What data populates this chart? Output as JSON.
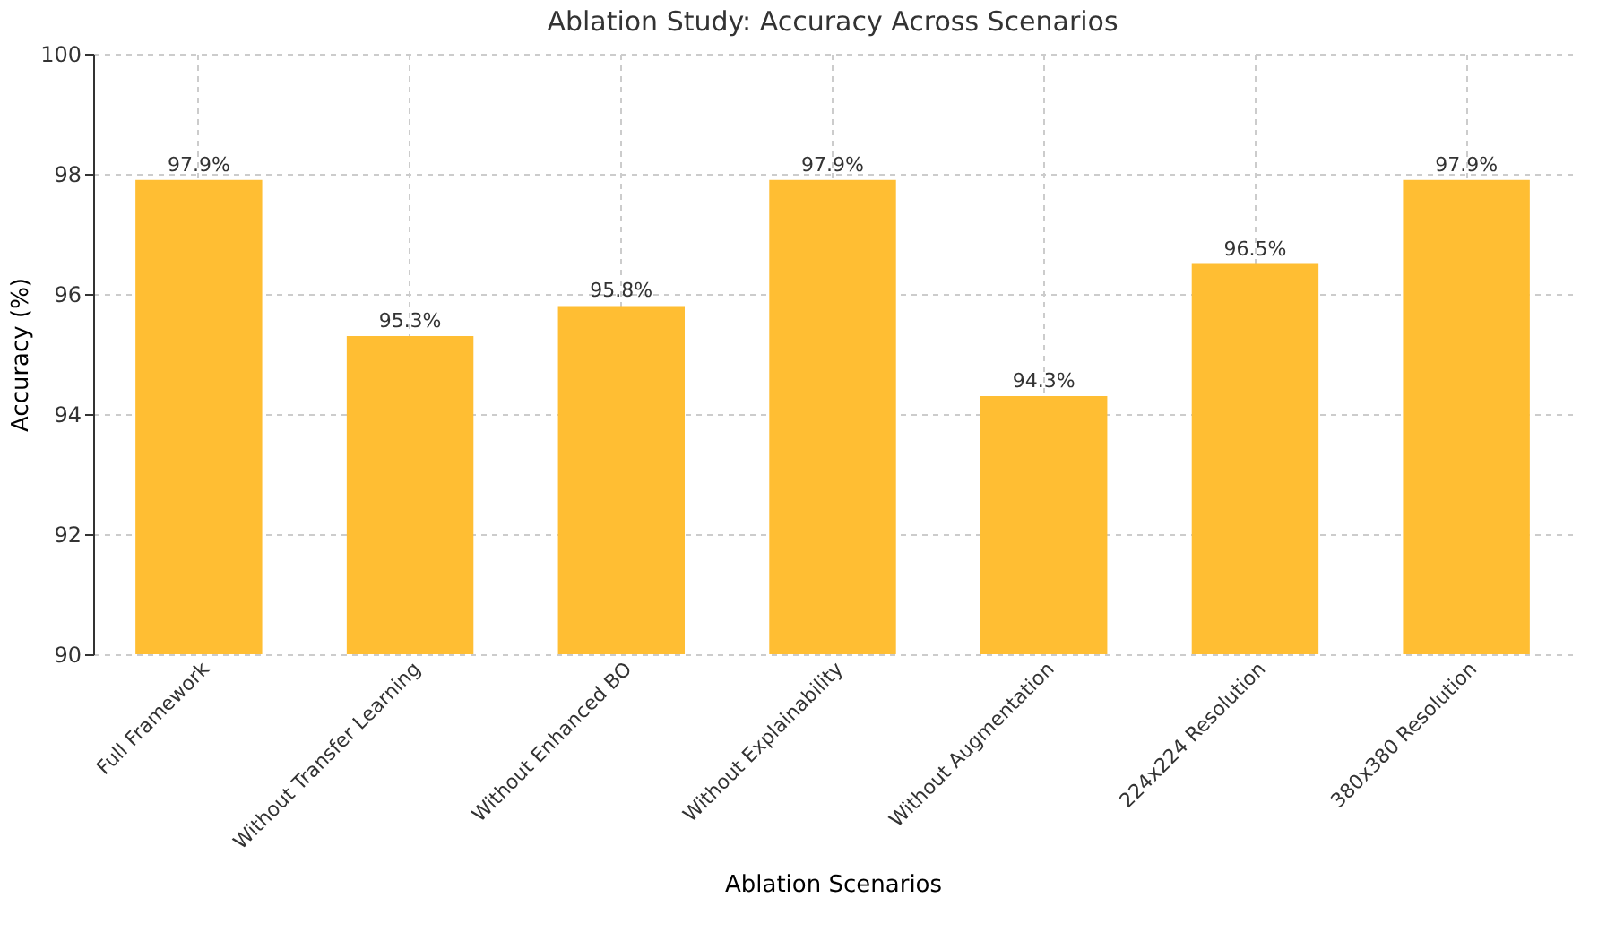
{
  "chart_data": {
    "type": "bar",
    "title": "Ablation Study: Accuracy Across Scenarios",
    "xlabel": "Ablation Scenarios",
    "ylabel": "Accuracy (%)",
    "categories": [
      "Full Framework",
      "Without Transfer Learning",
      "Without Enhanced BO",
      "Without Explainability",
      "Without Augmentation",
      "224x224 Resolution",
      "380x380 Resolution"
    ],
    "values": [
      97.9,
      95.3,
      95.8,
      97.9,
      94.3,
      96.5,
      97.9
    ],
    "value_labels": [
      "97.9%",
      "95.3%",
      "95.8%",
      "97.9%",
      "94.3%",
      "96.5%",
      "97.9%"
    ],
    "color": "#ffbe33",
    "ylim": [
      90,
      100
    ],
    "yticks": [
      90,
      92,
      94,
      96,
      98,
      100
    ],
    "grid": true
  }
}
